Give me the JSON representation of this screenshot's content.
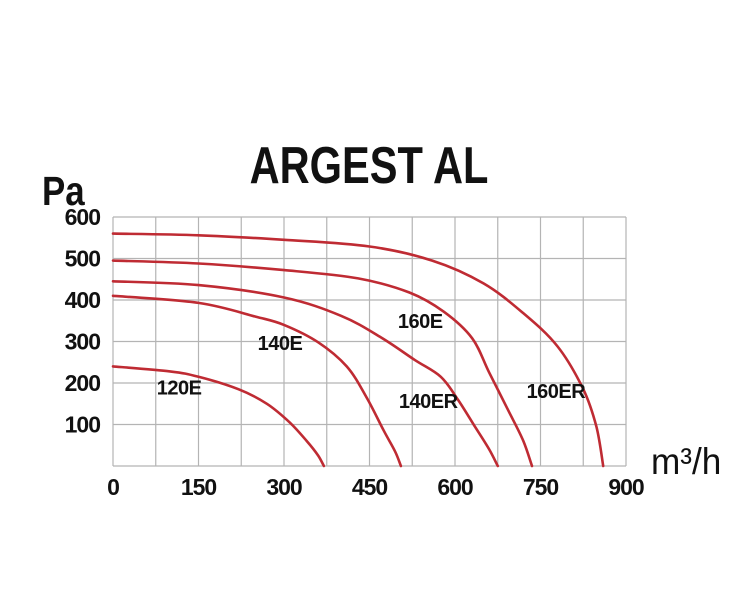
{
  "title": "ARGEST AL",
  "colors": {
    "curve": "#bf2b33",
    "grid": "#b4b4b4",
    "text": "#111111",
    "background": "#ffffff"
  },
  "chart_data": {
    "type": "line",
    "title": "ARGEST AL",
    "xlabel": "m³/h",
    "ylabel": "Pa",
    "xlim": [
      0,
      900
    ],
    "ylim": [
      0,
      600
    ],
    "x_ticks": [
      0,
      150,
      300,
      450,
      600,
      750,
      900
    ],
    "y_ticks": [
      100,
      200,
      300,
      400,
      500,
      600
    ],
    "x_grid_step": 75,
    "y_grid_step": 100,
    "grid": true,
    "legend_position": "inline-labels",
    "series": [
      {
        "name": "120E",
        "label_pos": [
          116,
          172
        ],
        "points": [
          [
            0,
            240
          ],
          [
            100,
            228
          ],
          [
            150,
            215
          ],
          [
            220,
            185
          ],
          [
            270,
            150
          ],
          [
            310,
            105
          ],
          [
            340,
            60
          ],
          [
            360,
            25
          ],
          [
            370,
            0
          ]
        ]
      },
      {
        "name": "140E",
        "label_pos": [
          293,
          280
        ],
        "points": [
          [
            0,
            410
          ],
          [
            150,
            393
          ],
          [
            250,
            360
          ],
          [
            300,
            340
          ],
          [
            360,
            298
          ],
          [
            410,
            240
          ],
          [
            445,
            165
          ],
          [
            475,
            85
          ],
          [
            495,
            35
          ],
          [
            505,
            0
          ]
        ]
      },
      {
        "name": "160E",
        "label_pos": [
          539,
          333
        ],
        "points": [
          [
            0,
            495
          ],
          [
            150,
            488
          ],
          [
            300,
            472
          ],
          [
            430,
            452
          ],
          [
            520,
            418
          ],
          [
            580,
            372
          ],
          [
            630,
            308
          ],
          [
            660,
            225
          ],
          [
            695,
            130
          ],
          [
            720,
            60
          ],
          [
            735,
            0
          ]
        ]
      },
      {
        "name": "140ER",
        "label_pos": [
          553,
          140
        ],
        "points": [
          [
            0,
            445
          ],
          [
            150,
            436
          ],
          [
            300,
            406
          ],
          [
            400,
            362
          ],
          [
            470,
            310
          ],
          [
            530,
            255
          ],
          [
            575,
            215
          ],
          [
            605,
            160
          ],
          [
            635,
            95
          ],
          [
            660,
            40
          ],
          [
            675,
            0
          ]
        ]
      },
      {
        "name": "160ER",
        "label_pos": [
          777,
          164
        ],
        "points": [
          [
            0,
            560
          ],
          [
            150,
            556
          ],
          [
            300,
            545
          ],
          [
            450,
            529
          ],
          [
            560,
            495
          ],
          [
            650,
            440
          ],
          [
            720,
            368
          ],
          [
            780,
            288
          ],
          [
            825,
            185
          ],
          [
            848,
            95
          ],
          [
            860,
            0
          ]
        ]
      }
    ]
  }
}
